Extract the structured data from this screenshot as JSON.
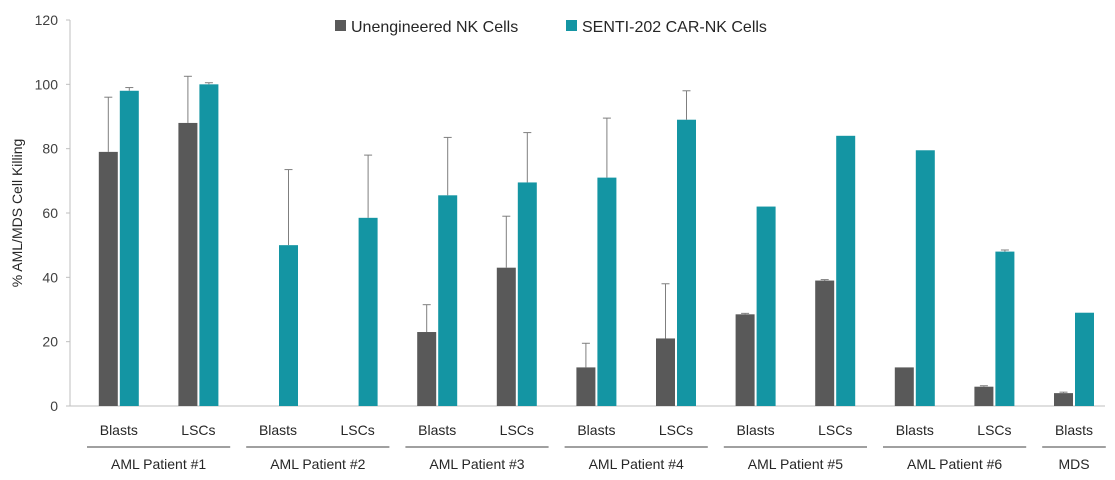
{
  "chart_data": {
    "type": "bar",
    "ylabel": "% AML/MDS Cell Killing",
    "ylim": [
      0,
      120
    ],
    "yticks": [
      0,
      20,
      40,
      60,
      80,
      100,
      120
    ],
    "legend_position": "top-center",
    "grid": false,
    "categories": [
      {
        "label": "Blasts",
        "group": 0
      },
      {
        "label": "LSCs",
        "group": 0
      },
      {
        "label": "Blasts",
        "group": 1
      },
      {
        "label": "LSCs",
        "group": 1
      },
      {
        "label": "Blasts",
        "group": 2
      },
      {
        "label": "LSCs",
        "group": 2
      },
      {
        "label": "Blasts",
        "group": 3
      },
      {
        "label": "LSCs",
        "group": 3
      },
      {
        "label": "Blasts",
        "group": 4
      },
      {
        "label": "LSCs",
        "group": 4
      },
      {
        "label": "Blasts",
        "group": 5
      },
      {
        "label": "LSCs",
        "group": 5
      },
      {
        "label": "Blasts",
        "group": 6
      }
    ],
    "groups": [
      "AML Patient #1",
      "AML Patient #2",
      "AML Patient #3",
      "AML Patient #4",
      "AML Patient #5",
      "AML Patient #6",
      "MDS"
    ],
    "series": [
      {
        "name": "Unengineered NK Cells",
        "color": "#595959",
        "values": [
          79,
          88,
          null,
          null,
          23,
          43,
          12,
          21,
          28.5,
          39,
          12,
          6,
          4
        ],
        "errors": [
          17,
          14.5,
          null,
          null,
          8.5,
          16,
          7.5,
          17,
          0.3,
          0.3,
          null,
          0.3,
          0.3
        ]
      },
      {
        "name": "SENTI-202 CAR-NK Cells",
        "color": "#1495A3",
        "values": [
          98,
          100,
          50,
          58.5,
          65.5,
          69.5,
          71,
          89,
          62,
          84,
          79.5,
          48,
          29
        ],
        "errors": [
          1,
          0.5,
          23.5,
          19.5,
          18,
          15.5,
          18.5,
          9,
          null,
          null,
          null,
          0.5,
          null
        ]
      }
    ]
  }
}
